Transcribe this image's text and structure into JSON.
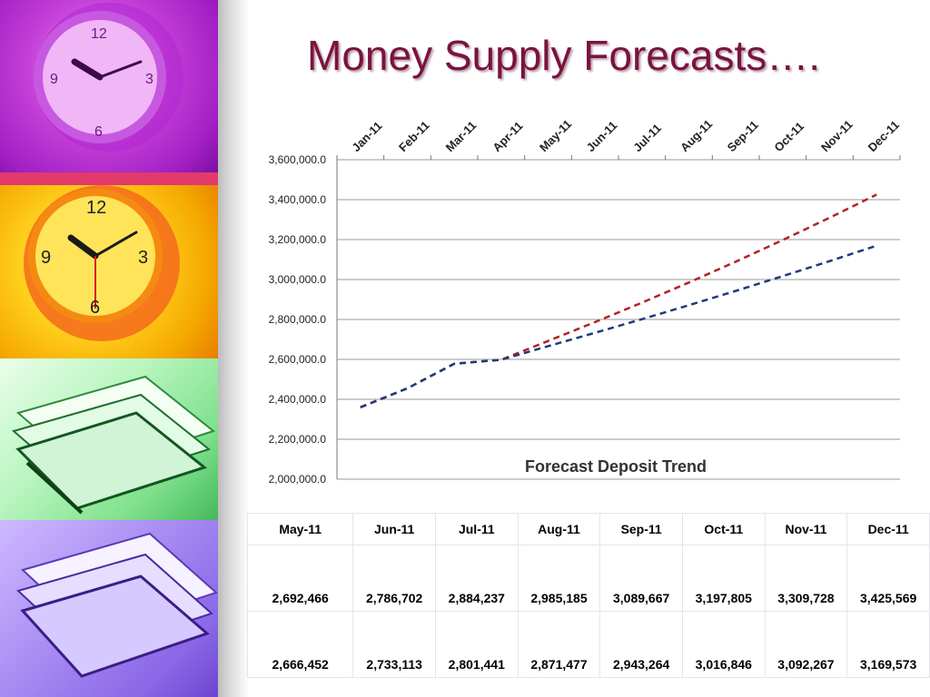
{
  "slide": {
    "title": "Money Supply Forecasts…."
  },
  "colors": {
    "title": "#7a1340",
    "series_red": "#b22222",
    "series_blue": "#1f3a7a",
    "grid": "#9a9a9a"
  },
  "chart_data": {
    "type": "line",
    "title": "Forecast Deposit Trend",
    "x": [
      "Jan-11",
      "Feb-11",
      "Mar-11",
      "Apr-11",
      "May-11",
      "Jun-11",
      "Jul-11",
      "Aug-11",
      "Sep-11",
      "Oct-11",
      "Nov-11",
      "Dec-11"
    ],
    "series": [
      {
        "values": [
          2360000,
          2455000,
          2578000,
          2598000,
          2692466,
          2786702,
          2884237,
          2985185,
          3089667,
          3197805,
          3309728,
          3425569
        ],
        "color": "#b22222",
        "style": "dashed"
      },
      {
        "values": [
          2360000,
          2455000,
          2578000,
          2598000,
          2666452,
          2733113,
          2801441,
          2871477,
          2943264,
          3016846,
          3092267,
          3169573
        ],
        "color": "#1f3a7a",
        "style": "dashed"
      }
    ],
    "y_ticks": [
      "2,000,000.0",
      "2,200,000.0",
      "2,400,000.0",
      "2,600,000.0",
      "2,800,000.0",
      "3,000,000.0",
      "3,200,000.0",
      "3,400,000.0",
      "3,600,000.0"
    ],
    "ylim": [
      2000000,
      3600000
    ],
    "x_axis_position": "top",
    "grid": true,
    "legend": "none"
  },
  "table": {
    "headers": [
      "May-11",
      "Jun-11",
      "Jul-11",
      "Aug-11",
      "Sep-11",
      "Oct-11",
      "Nov-11",
      "Dec-11"
    ],
    "rows": [
      [
        "2,692,466",
        "2,786,702",
        "2,884,237",
        "2,985,185",
        "3,089,667",
        "3,197,805",
        "3,309,728",
        "3,425,569"
      ],
      [
        "2,666,452",
        "2,733,113",
        "2,801,441",
        "2,871,477",
        "2,943,264",
        "3,016,846",
        "3,092,267",
        "3,169,573"
      ]
    ]
  }
}
